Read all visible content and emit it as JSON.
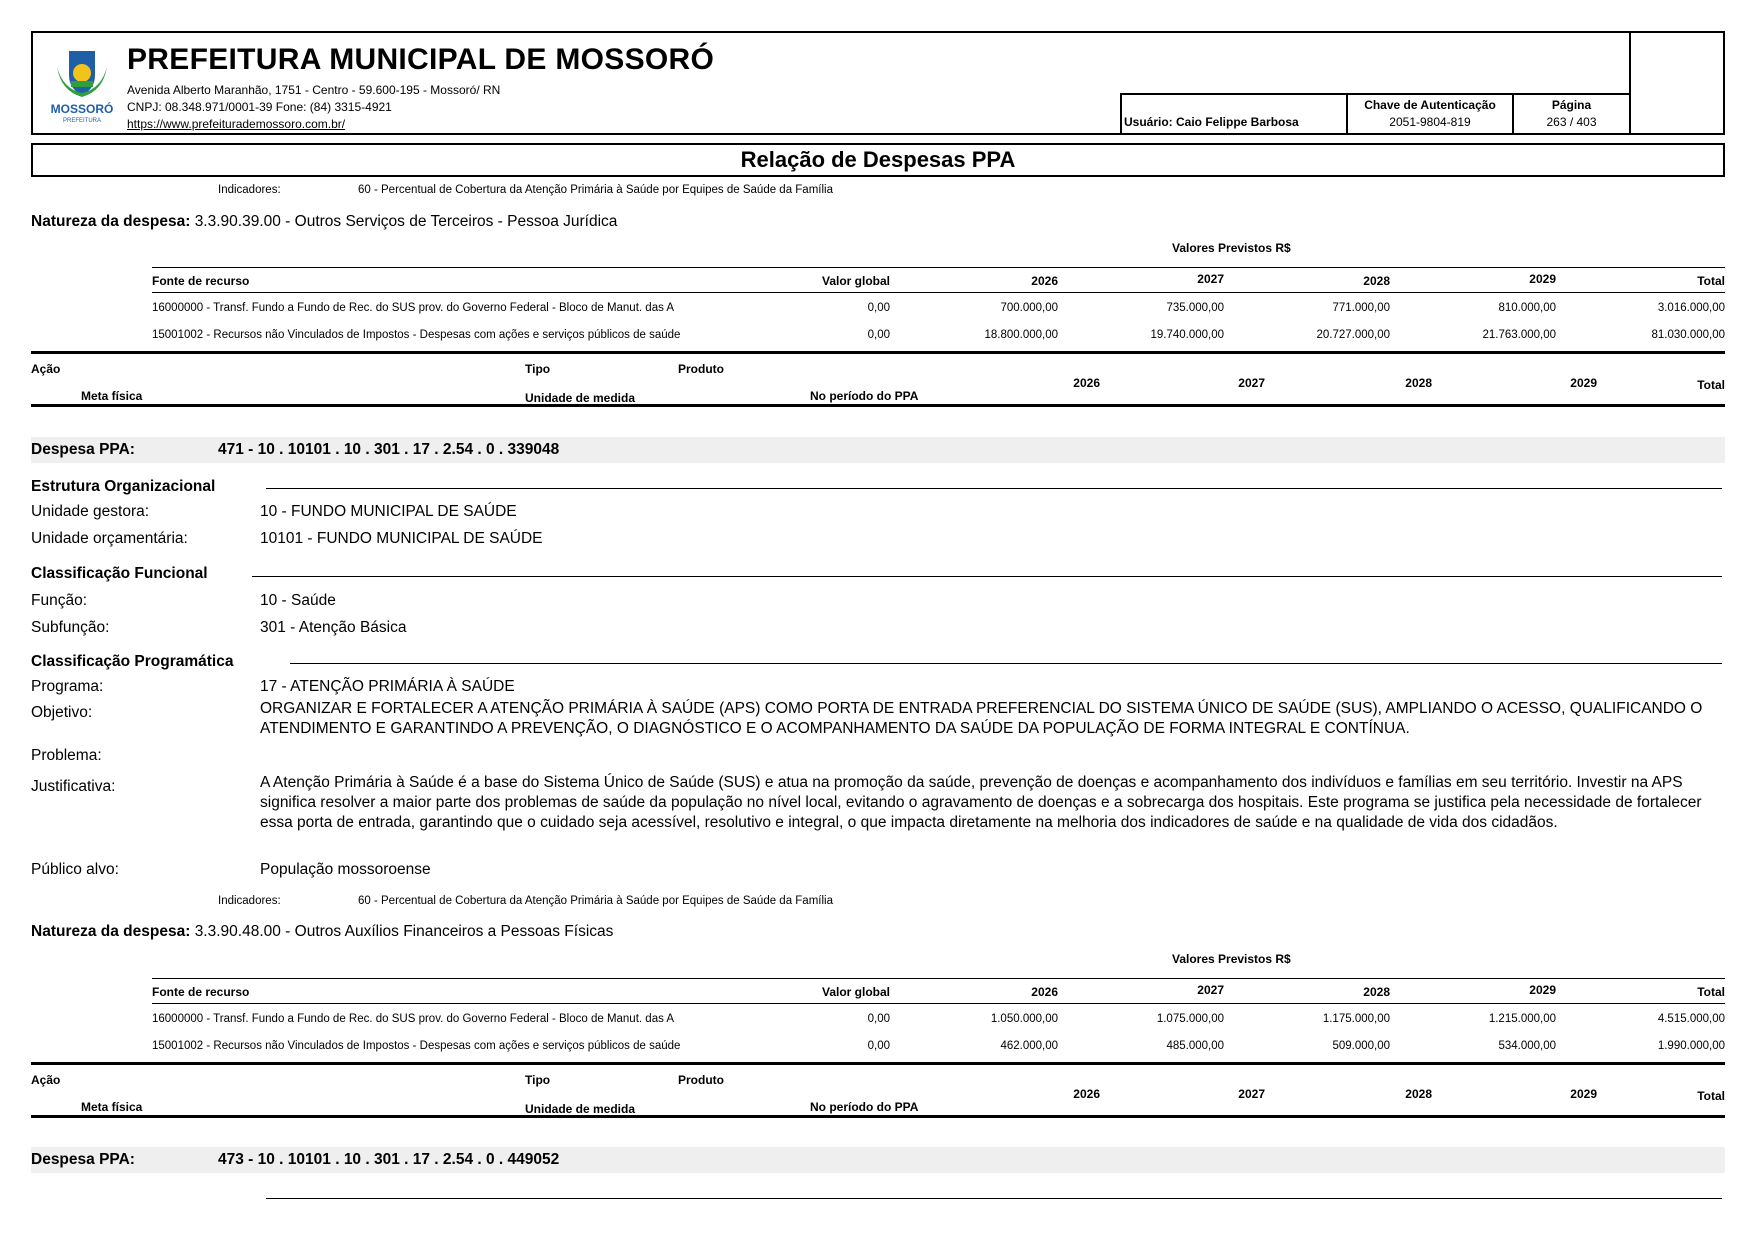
{
  "header": {
    "org_name": "PREFEITURA MUNICIPAL DE MOSSORÓ",
    "address": "Avenida Alberto Maranhão, 1751 - Centro - 59.600-195 - Mossoró/ RN",
    "cnpj_phone": "CNPJ: 08.348.971/0001-39 Fone: (84) 3315-4921",
    "website": "https://www.prefeiturademossoro.com.br/",
    "logo_text": "MOSSORÓ",
    "logo_subtext": "PREFEITURA",
    "user": "Usuário: Caio Felippe Barbosa",
    "auth_key_label": "Chave de Autenticação",
    "auth_key": "2051-9804-819",
    "page_label": "Página",
    "page": "263 / 403"
  },
  "report_title": "Relação de Despesas PPA",
  "labels": {
    "indicadores": "Indicadores:",
    "natureza": "Natureza da despesa:",
    "valores_previstos": "Valores Previstos R$",
    "fonte": "Fonte de recurso",
    "valor_global": "Valor global",
    "total": "Total",
    "acao": "Ação",
    "tipo": "Tipo",
    "produto": "Produto",
    "meta_fisica": "Meta física",
    "unidade_medida": "Unidade de medida",
    "no_periodo": "No período do PPA",
    "despesa_ppa": "Despesa PPA:",
    "estrutura": "Estrutura Organizacional",
    "unidade_gestora": "Unidade gestora:",
    "unidade_orcamentaria": "Unidade orçamentária:",
    "class_funcional": "Classificação Funcional",
    "funcao": "Função:",
    "subfuncao": "Subfunção:",
    "class_programatica": "Classificação Programática",
    "programa": "Programa:",
    "objetivo": "Objetivo:",
    "problema": "Problema:",
    "justificativa": "Justificativa:",
    "publico": "Público alvo:"
  },
  "years": [
    "2026",
    "2027",
    "2028",
    "2029"
  ],
  "block1": {
    "indicador": "60 - Percentual de Cobertura da Atenção Primária à Saúde por Equipes de Saúde da Família",
    "natureza": "3.3.90.39.00 - Outros Serviços de Terceiros - Pessoa Jurídica",
    "rows": [
      {
        "fonte": "16000000 - Transf. Fundo a Fundo de Rec. do SUS prov. do Governo  Federal - Bloco de Manut. das A",
        "valor_global": "0,00",
        "y2026": "700.000,00",
        "y2027": "735.000,00",
        "y2028": "771.000,00",
        "y2029": "810.000,00",
        "total": "3.016.000,00"
      },
      {
        "fonte": "15001002 - Recursos não Vinculados de Impostos - Despesas com ações e serviços públicos de saúde",
        "valor_global": "0,00",
        "y2026": "18.800.000,00",
        "y2027": "19.740.000,00",
        "y2028": "20.727.000,00",
        "y2029": "21.763.000,00",
        "total": "81.030.000,00"
      }
    ]
  },
  "despesa1": {
    "code": "471 - 10 . 10101 . 10 . 301 . 17 . 2.54 . 0 . 339048",
    "unidade_gestora": "10 - FUNDO MUNICIPAL DE SAÚDE",
    "unidade_orcamentaria": "10101 - FUNDO MUNICIPAL DE SAÚDE",
    "funcao": "10 - Saúde",
    "subfuncao": "301 - Atenção Básica",
    "programa": "17 - ATENÇÃO PRIMÁRIA À SAÚDE",
    "objetivo": "ORGANIZAR E FORTALECER A ATENÇÃO PRIMÁRIA À SAÚDE (APS) COMO PORTA DE ENTRADA PREFERENCIAL DO SISTEMA ÚNICO DE SAÚDE (SUS), AMPLIANDO O ACESSO, QUALIFICANDO O ATENDIMENTO E GARANTINDO A PREVENÇÃO, O DIAGNÓSTICO E O ACOMPANHAMENTO DA SAÚDE DA POPULAÇÃO DE FORMA INTEGRAL E CONTÍNUA.",
    "problema": "",
    "justificativa": "A Atenção Primária à Saúde é a base do Sistema Único de Saúde (SUS) e atua na promoção da saúde, prevenção de doenças e acompanhamento dos indivíduos e famílias em seu território. Investir na APS significa resolver a maior parte dos problemas de saúde da população no nível local, evitando o agravamento de doenças e a sobrecarga dos hospitais. Este programa se justifica pela necessidade de fortalecer essa porta de entrada, garantindo que o cuidado seja acessível, resolutivo e integral, o que impacta diretamente na melhoria dos indicadores de saúde e na qualidade de vida dos cidadãos.",
    "publico": "População mossoroense"
  },
  "block2": {
    "indicador": "60 - Percentual de Cobertura da Atenção Primária à Saúde por Equipes de Saúde da Família",
    "natureza": "3.3.90.48.00 - Outros Auxílios Financeiros a Pessoas Físicas",
    "rows": [
      {
        "fonte": "16000000 - Transf. Fundo a Fundo de Rec. do SUS prov. do Governo  Federal - Bloco de Manut. das A",
        "valor_global": "0,00",
        "y2026": "1.050.000,00",
        "y2027": "1.075.000,00",
        "y2028": "1.175.000,00",
        "y2029": "1.215.000,00",
        "total": "4.515.000,00"
      },
      {
        "fonte": "15001002 - Recursos não Vinculados de Impostos - Despesas com ações e serviços públicos de saúde",
        "valor_global": "0,00",
        "y2026": "462.000,00",
        "y2027": "485.000,00",
        "y2028": "509.000,00",
        "y2029": "534.000,00",
        "total": "1.990.000,00"
      }
    ]
  },
  "despesa2": {
    "code": "473 - 10 . 10101 . 10 . 301 . 17 . 2.54 . 0 . 449052"
  },
  "colors": {
    "band": "#efefef",
    "logo_blue": "#1f5fa8",
    "logo_green": "#2e9e3e",
    "logo_yellow": "#f2c318"
  }
}
